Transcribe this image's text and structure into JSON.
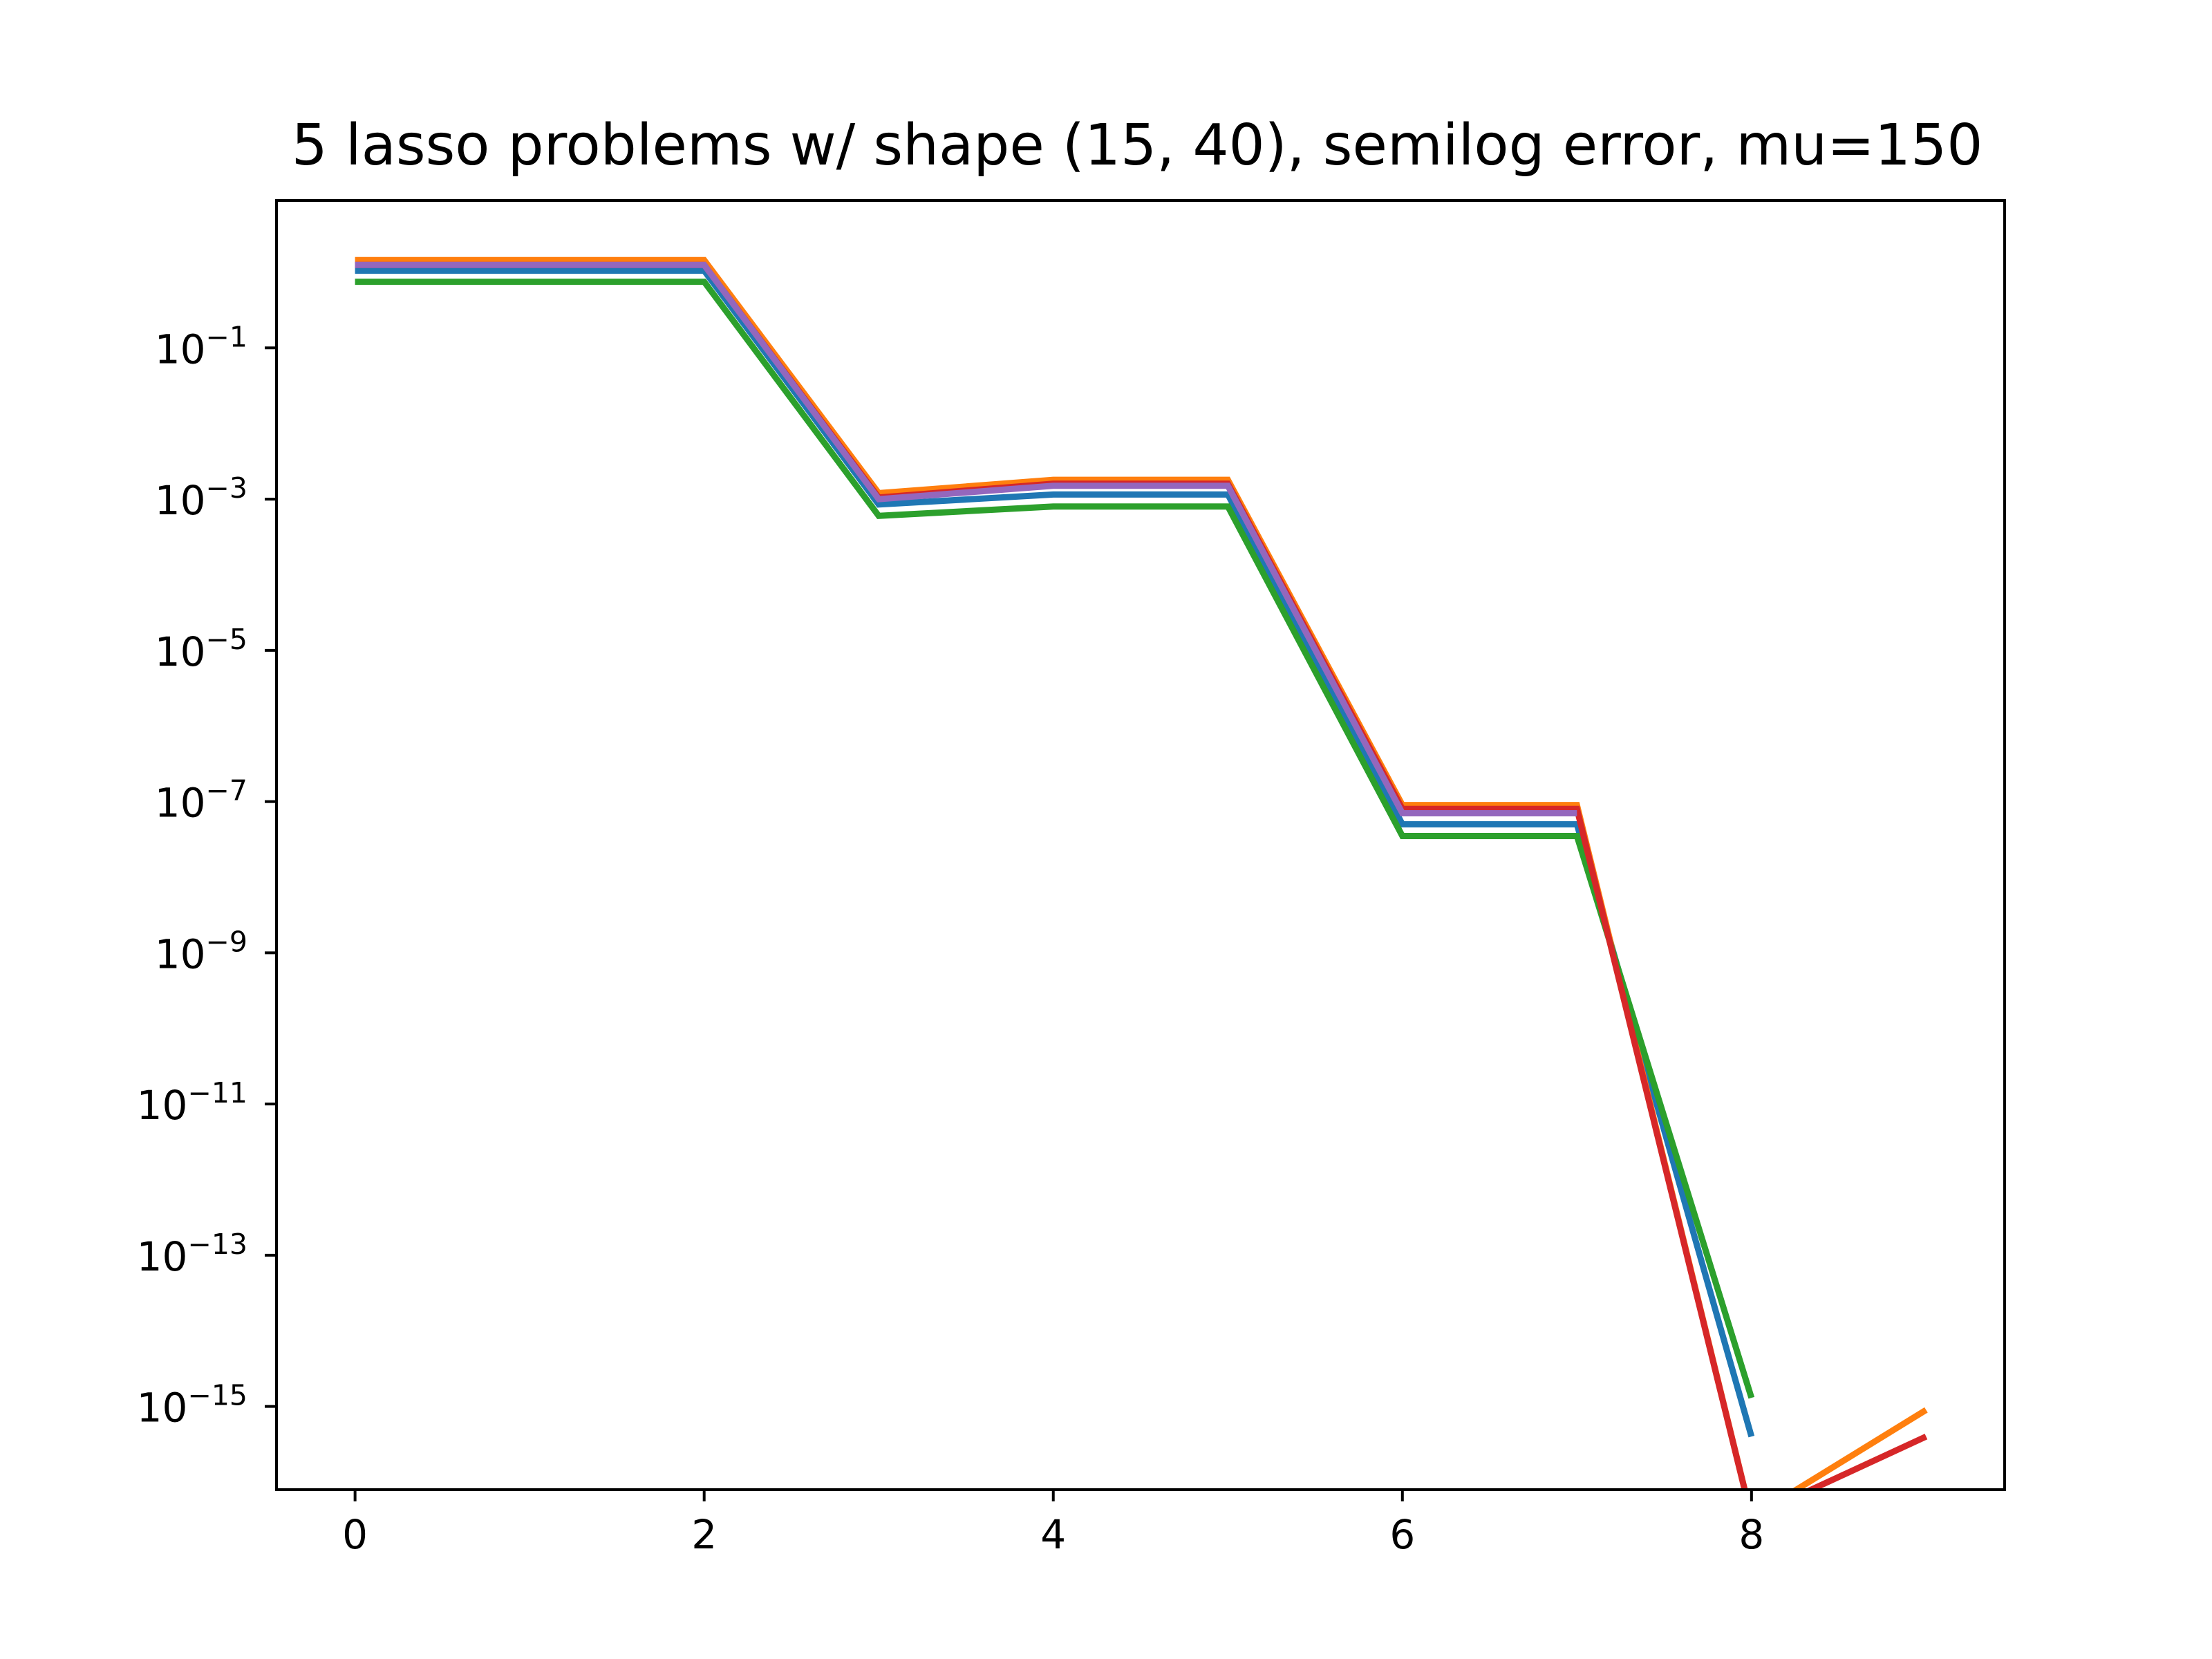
{
  "chart_data": {
    "type": "line",
    "title": "5 lasso problems w/ shape (15, 40), semilog error, mu=150",
    "xlabel": "",
    "ylabel": "",
    "yscale": "log",
    "xlim": [
      -0.45,
      9.45
    ],
    "ylim_log10": [
      -16.1,
      0.95
    ],
    "grid": false,
    "legend": "none",
    "x_ticks": [
      0,
      2,
      4,
      6,
      8
    ],
    "y_ticks": [
      {
        "base": "10",
        "exponent": "−1",
        "log10": -1
      },
      {
        "base": "10",
        "exponent": "−3",
        "log10": -3
      },
      {
        "base": "10",
        "exponent": "−5",
        "log10": -5
      },
      {
        "base": "10",
        "exponent": "−7",
        "log10": -7
      },
      {
        "base": "10",
        "exponent": "−9",
        "log10": -9
      },
      {
        "base": "10",
        "exponent": "−11",
        "log10": -11
      },
      {
        "base": "10",
        "exponent": "−13",
        "log10": -13
      },
      {
        "base": "10",
        "exponent": "−15",
        "log10": -15
      }
    ],
    "series": [
      {
        "color": "#1f77b4",
        "x": [
          0,
          1,
          2,
          3,
          4,
          5,
          6,
          7,
          8
        ],
        "y": [
          1.05,
          1.05,
          1.05,
          0.00085,
          0.00115,
          0.00115,
          5e-08,
          5e-08,
          4e-16
        ]
      },
      {
        "color": "#ff7f0e",
        "x": [
          0,
          1,
          2,
          3,
          4,
          5,
          6,
          7,
          8,
          9
        ],
        "y": [
          1.45,
          1.45,
          1.45,
          0.0012,
          0.0018,
          0.0018,
          9e-08,
          9e-08,
          0,
          9e-16
        ]
      },
      {
        "color": "#2ca02c",
        "x": [
          0,
          1,
          2,
          3,
          4,
          5,
          6,
          7,
          8
        ],
        "y": [
          0.75,
          0.75,
          0.75,
          0.0006,
          0.0008,
          0.0008,
          3.5e-08,
          3.5e-08,
          1.3e-15
        ]
      },
      {
        "color": "#d62728",
        "x": [
          0,
          1,
          2,
          3,
          4,
          5,
          6,
          7,
          8,
          9
        ],
        "y": [
          1.25,
          1.25,
          1.25,
          0.00105,
          0.0016,
          0.0016,
          8e-08,
          8e-08,
          0,
          4e-16
        ]
      },
      {
        "color": "#9467bd",
        "x": [
          0,
          1,
          2,
          3,
          4,
          5,
          6,
          7
        ],
        "y": [
          1.25,
          1.25,
          1.25,
          0.001,
          0.0015,
          0.0015,
          7e-08,
          7e-08
        ]
      }
    ]
  }
}
